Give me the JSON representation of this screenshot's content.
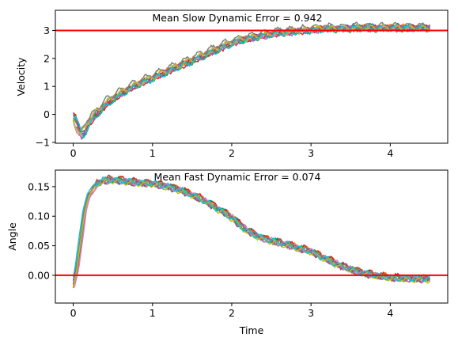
{
  "colors": {
    "reference": "#ff0000",
    "palette": [
      "#1f77b4",
      "#ff7f0e",
      "#2ca02c",
      "#d62728",
      "#9467bd",
      "#8c564b",
      "#e377c2",
      "#7f7f7f",
      "#bcbd22",
      "#17becf"
    ]
  },
  "chart_data": [
    {
      "type": "line",
      "annotation": "Mean Slow Dynamic Error = 0.942",
      "xlabel": "",
      "ylabel": "Velocity",
      "xlim": [
        -0.225,
        4.725
      ],
      "ylim": [
        -1.03,
        3.72
      ],
      "xticks": [
        0,
        1,
        2,
        3,
        4
      ],
      "yticks": [
        -1,
        0,
        1,
        2,
        3
      ],
      "reference_line": 3,
      "grid": false,
      "legend": "none",
      "n_series": 10,
      "x": [
        0,
        0.05,
        0.1,
        0.2,
        0.4,
        0.6,
        0.8,
        1.0,
        1.2,
        1.4,
        1.6,
        1.8,
        2.0,
        2.2,
        2.4,
        2.6,
        2.8,
        3.0,
        3.2,
        3.4,
        3.6,
        3.8,
        4.0,
        4.2,
        4.4,
        4.5
      ],
      "values": [
        0.0,
        -0.45,
        -0.75,
        -0.2,
        0.4,
        0.8,
        1.1,
        1.35,
        1.6,
        1.85,
        2.1,
        2.35,
        2.6,
        2.75,
        2.85,
        2.95,
        3.0,
        3.05,
        3.1,
        3.1,
        3.12,
        3.12,
        3.12,
        3.12,
        3.12,
        3.12
      ],
      "noise_amplitude": 0.15
    },
    {
      "type": "line",
      "annotation": "Mean Fast Dynamic Error = 0.074",
      "xlabel": "Time",
      "ylabel": "Angle",
      "xlim": [
        -0.225,
        4.725
      ],
      "ylim": [
        -0.047,
        0.178
      ],
      "xticks": [
        0,
        1,
        2,
        3,
        4
      ],
      "yticks": [
        0.0,
        0.05,
        0.1,
        0.15
      ],
      "ytick_labels": [
        "0.00",
        "0.05",
        "0.10",
        "0.15"
      ],
      "reference_line": 0,
      "grid": false,
      "legend": "none",
      "n_series": 10,
      "x": [
        0,
        0.05,
        0.1,
        0.15,
        0.2,
        0.3,
        0.4,
        0.5,
        0.6,
        0.8,
        1.0,
        1.2,
        1.4,
        1.6,
        1.8,
        2.0,
        2.2,
        2.4,
        2.6,
        2.8,
        3.0,
        3.2,
        3.4,
        3.6,
        3.8,
        4.0,
        4.2,
        4.4,
        4.5
      ],
      "values": [
        -0.02,
        0.01,
        0.06,
        0.11,
        0.135,
        0.155,
        0.16,
        0.162,
        0.16,
        0.157,
        0.155,
        0.15,
        0.142,
        0.13,
        0.115,
        0.098,
        0.075,
        0.062,
        0.055,
        0.048,
        0.04,
        0.027,
        0.015,
        0.006,
        0.0,
        -0.004,
        -0.006,
        -0.006,
        -0.006
      ],
      "noise_amplitude": 0.007
    }
  ],
  "axes_labels": {
    "xlabel_bottom": "Time"
  }
}
